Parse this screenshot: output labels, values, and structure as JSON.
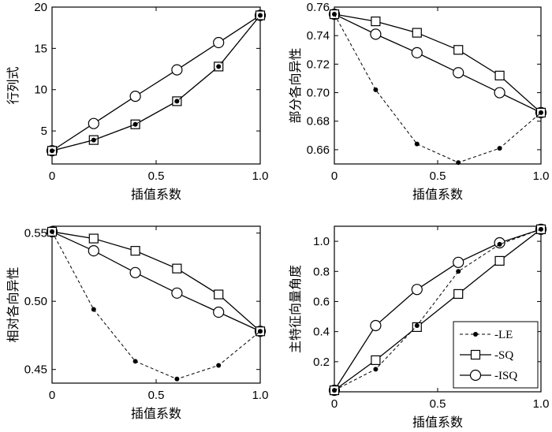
{
  "chart_data": [
    {
      "type": "line",
      "xlabel": "插值系数",
      "ylabel": "行列式",
      "xlim": [
        0,
        1
      ],
      "ylim": [
        1,
        20
      ],
      "xticks": [
        0,
        0.5,
        1.0
      ],
      "xtick_labels": [
        "0",
        "0.5",
        "1.0"
      ],
      "yticks": [
        5,
        10,
        15,
        20
      ],
      "ytick_labels": [
        "5",
        "10",
        "15",
        "20"
      ],
      "series": [
        {
          "name": "LE",
          "x": [
            0,
            0.2,
            0.4,
            0.6,
            0.8,
            1.0
          ],
          "values": [
            2.6,
            3.9,
            5.8,
            8.6,
            12.8,
            19.0
          ]
        },
        {
          "name": "SQ",
          "x": [
            0,
            0.2,
            0.4,
            0.6,
            0.8,
            1.0
          ],
          "values": [
            2.6,
            3.9,
            5.8,
            8.6,
            12.8,
            19.0
          ]
        },
        {
          "name": "ISQ",
          "x": [
            0,
            0.2,
            0.4,
            0.6,
            0.8,
            1.0
          ],
          "values": [
            2.6,
            5.9,
            9.2,
            12.4,
            15.7,
            19.0
          ]
        }
      ]
    },
    {
      "type": "line",
      "xlabel": "插值系数",
      "ylabel": "部分各向异性",
      "xlim": [
        0,
        1
      ],
      "ylim": [
        0.65,
        0.76
      ],
      "xticks": [
        0,
        0.5,
        1.0
      ],
      "xtick_labels": [
        "0",
        "0.5",
        "1.0"
      ],
      "yticks": [
        0.66,
        0.68,
        0.7,
        0.72,
        0.74,
        0.76
      ],
      "ytick_labels": [
        "0.66",
        "0.68",
        "0.70",
        "0.72",
        "0.74",
        "0.76"
      ],
      "series": [
        {
          "name": "LE",
          "x": [
            0,
            0.2,
            0.4,
            0.6,
            0.8,
            1.0
          ],
          "values": [
            0.755,
            0.702,
            0.664,
            0.651,
            0.661,
            0.686
          ]
        },
        {
          "name": "SQ",
          "x": [
            0,
            0.2,
            0.4,
            0.6,
            0.8,
            1.0
          ],
          "values": [
            0.755,
            0.75,
            0.742,
            0.73,
            0.712,
            0.686
          ]
        },
        {
          "name": "ISQ",
          "x": [
            0,
            0.2,
            0.4,
            0.6,
            0.8,
            1.0
          ],
          "values": [
            0.755,
            0.741,
            0.728,
            0.714,
            0.7,
            0.686
          ]
        }
      ]
    },
    {
      "type": "line",
      "xlabel": "插值系数",
      "ylabel": "相对各向异性",
      "xlim": [
        0,
        1
      ],
      "ylim": [
        0.44,
        0.555
      ],
      "xticks": [
        0,
        0.5,
        1.0
      ],
      "xtick_labels": [
        "0",
        "0.5",
        "1.0"
      ],
      "yticks": [
        0.45,
        0.5,
        0.55
      ],
      "ytick_labels": [
        "0.45",
        "0.50",
        "0.55"
      ],
      "series": [
        {
          "name": "LE",
          "x": [
            0,
            0.2,
            0.4,
            0.6,
            0.8,
            1.0
          ],
          "values": [
            0.551,
            0.494,
            0.456,
            0.443,
            0.453,
            0.478
          ]
        },
        {
          "name": "SQ",
          "x": [
            0,
            0.2,
            0.4,
            0.6,
            0.8,
            1.0
          ],
          "values": [
            0.551,
            0.546,
            0.537,
            0.524,
            0.505,
            0.478
          ]
        },
        {
          "name": "ISQ",
          "x": [
            0,
            0.2,
            0.4,
            0.6,
            0.8,
            1.0
          ],
          "values": [
            0.551,
            0.537,
            0.521,
            0.506,
            0.492,
            0.478
          ]
        }
      ]
    },
    {
      "type": "line",
      "xlabel": "插值系数",
      "ylabel": "主特征向量角度",
      "xlim": [
        0,
        1
      ],
      "ylim": [
        0,
        1.1
      ],
      "xticks": [
        0,
        0.5,
        1.0
      ],
      "xtick_labels": [
        "0",
        "0.5",
        "1.0"
      ],
      "yticks": [
        0.2,
        0.4,
        0.6,
        0.8,
        1.0
      ],
      "ytick_labels": [
        "0.2",
        "0.4",
        "0.6",
        "0.8",
        "1.0"
      ],
      "legend": {
        "position": "lower-right",
        "entries": [
          "LE",
          "SQ",
          "ISQ"
        ]
      },
      "series": [
        {
          "name": "LE",
          "x": [
            0,
            0.2,
            0.4,
            0.6,
            0.8,
            1.0
          ],
          "values": [
            0.01,
            0.15,
            0.44,
            0.8,
            0.98,
            1.08
          ]
        },
        {
          "name": "SQ",
          "x": [
            0,
            0.2,
            0.4,
            0.6,
            0.8,
            1.0
          ],
          "values": [
            0.01,
            0.21,
            0.43,
            0.65,
            0.87,
            1.08
          ]
        },
        {
          "name": "ISQ",
          "x": [
            0,
            0.2,
            0.4,
            0.6,
            0.8,
            1.0
          ],
          "values": [
            0.01,
            0.44,
            0.68,
            0.86,
            0.99,
            1.08
          ]
        }
      ]
    }
  ]
}
